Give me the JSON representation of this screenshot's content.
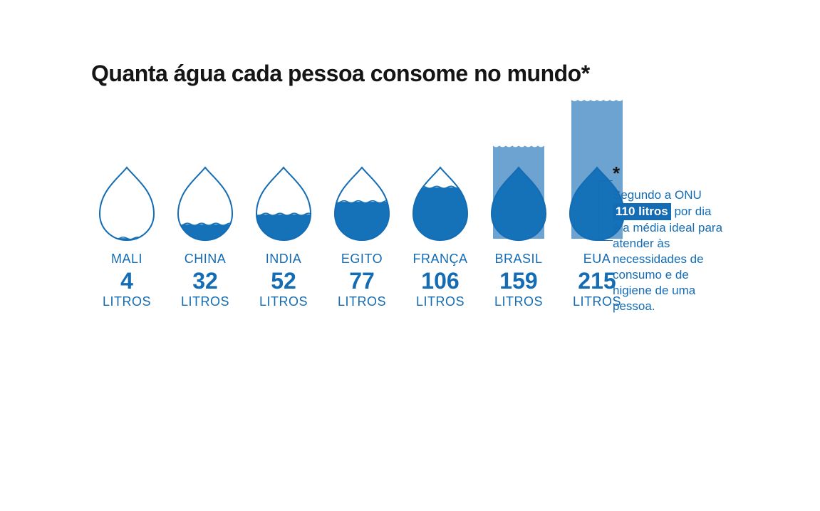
{
  "title": "Quanta água cada pessoa consome no mundo*",
  "unit_label": "LITROS",
  "drop_threshold": 110,
  "max_overflow_value": 215,
  "colors": {
    "main_blue": "#146cb4",
    "drop_fill": "#1672b8",
    "overflow_fill": "#6ca3d0",
    "stroke": "#146cb4",
    "text_dark": "#151515",
    "background": "#ffffff"
  },
  "countries": [
    {
      "name": "MALI",
      "value": 4
    },
    {
      "name": "CHINA",
      "value": 32
    },
    {
      "name": "INDIA",
      "value": 52
    },
    {
      "name": "EGITO",
      "value": 77
    },
    {
      "name": "FRANÇA",
      "value": 106
    },
    {
      "name": "BRASIL",
      "value": 159
    },
    {
      "name": "EUA",
      "value": 215
    }
  ],
  "footnote": {
    "asterisk": "*",
    "line1": "Segundo a ONU",
    "highlight": "110 litros",
    "line2_cont": " por dia",
    "rest": "é a média ideal para atender às necessidades de consumo e de higiene de uma pessoa."
  }
}
